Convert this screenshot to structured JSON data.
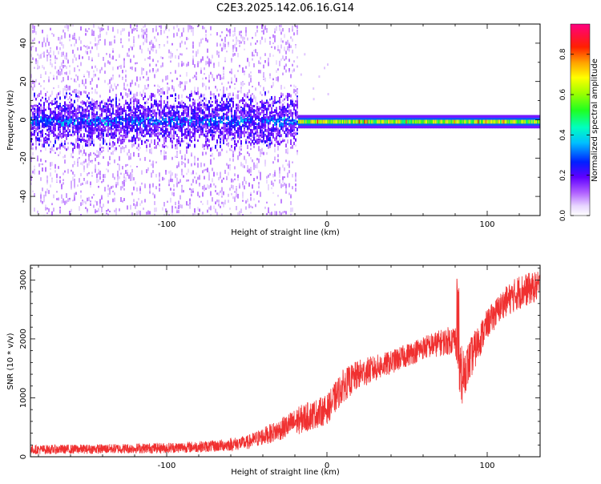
{
  "title": "C2E3.2025.142.06.16.G14",
  "chart_data": [
    {
      "type": "heatmap",
      "xlabel": "Height of straight line (km)",
      "ylabel": "Frequency (Hz)",
      "xlim": [
        -185,
        133
      ],
      "ylim": [
        -50,
        50
      ],
      "xticks": [
        -100,
        0,
        100
      ],
      "yticks": [
        -40,
        -20,
        0,
        20,
        40
      ],
      "colorbar": {
        "label": "Normalized spectral amplitude",
        "ticks": [
          0.0,
          0.2,
          0.4,
          0.6,
          0.8
        ],
        "range": [
          0,
          0.95
        ]
      },
      "features": {
        "scattered_noise_region_x": [
          -185,
          -18
        ],
        "scattered_noise_y_extent": [
          -50,
          50
        ],
        "dense_core_region_x": [
          -185,
          -18
        ],
        "dense_core_y_extent": [
          -15,
          15
        ],
        "signal_trace_x": [
          -18,
          133
        ],
        "signal_trace_frequency_hz": -1,
        "signal_trace_width_hz": [
          -3,
          3
        ]
      }
    },
    {
      "type": "line",
      "xlabel": "Height of straight line (km)",
      "ylabel": "SNR (10 * v/v)",
      "xlim": [
        -185,
        133
      ],
      "ylim": [
        0,
        3250
      ],
      "xticks": [
        -100,
        0,
        100
      ],
      "yticks": [
        0,
        1000,
        2000,
        3000
      ],
      "color": "#f03030",
      "series_anchors": {
        "x": [
          -185,
          -150,
          -100,
          -70,
          -50,
          -30,
          -15,
          0,
          10,
          20,
          40,
          60,
          80,
          85,
          100,
          110,
          120,
          133
        ],
        "y": [
          120,
          130,
          150,
          180,
          240,
          450,
          650,
          800,
          1200,
          1400,
          1600,
          1850,
          2000,
          1400,
          2250,
          2600,
          2800,
          2900
        ]
      },
      "series_noise": [
        80,
        80,
        90,
        100,
        120,
        180,
        250,
        250,
        280,
        250,
        200,
        200,
        250,
        400,
        250,
        250,
        300,
        250
      ],
      "spike": {
        "x": 82,
        "y_max": 3200,
        "y_min": 900
      }
    }
  ]
}
